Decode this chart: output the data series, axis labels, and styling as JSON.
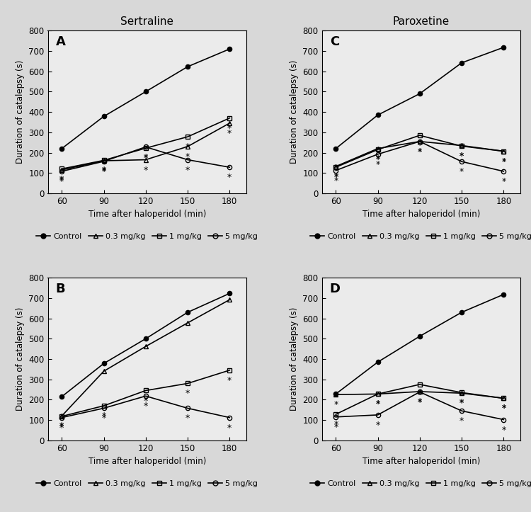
{
  "x": [
    60,
    90,
    120,
    150,
    180
  ],
  "panels": {
    "A": {
      "label": "A",
      "control": [
        220,
        378,
        500,
        623,
        710
      ],
      "dose_03": [
        115,
        160,
        165,
        230,
        345
      ],
      "dose_1": [
        120,
        162,
        222,
        278,
        370
      ],
      "dose_5": [
        108,
        157,
        228,
        165,
        128
      ],
      "stars_03": [
        true,
        true,
        true,
        true,
        true
      ],
      "stars_1": [
        true,
        true,
        true,
        true,
        true
      ],
      "stars_5": [
        true,
        true,
        true,
        true,
        true
      ]
    },
    "B": {
      "label": "B",
      "control": [
        215,
        378,
        500,
        630,
        723
      ],
      "dose_03": [
        120,
        340,
        462,
        578,
        692
      ],
      "dose_1": [
        118,
        170,
        245,
        280,
        345
      ],
      "dose_5": [
        112,
        158,
        218,
        158,
        112
      ],
      "stars_03": [
        true,
        false,
        false,
        false,
        false
      ],
      "stars_1": [
        true,
        true,
        true,
        true,
        true
      ],
      "stars_5": [
        true,
        true,
        true,
        true,
        true
      ]
    },
    "C": {
      "label": "C",
      "control": [
        220,
        385,
        490,
        642,
        718
      ],
      "dose_03": [
        132,
        220,
        255,
        235,
        207
      ],
      "dose_1": [
        128,
        215,
        285,
        232,
        207
      ],
      "dose_5": [
        112,
        192,
        255,
        156,
        108
      ],
      "stars_03": [
        true,
        true,
        true,
        true,
        true
      ],
      "stars_1": [
        true,
        true,
        true,
        true,
        true
      ],
      "stars_5": [
        true,
        true,
        true,
        true,
        true
      ]
    },
    "D": {
      "label": "D",
      "control": [
        228,
        385,
        512,
        630,
        718
      ],
      "dose_03": [
        225,
        228,
        240,
        232,
        207
      ],
      "dose_1": [
        128,
        228,
        275,
        235,
        207
      ],
      "dose_5": [
        115,
        125,
        238,
        145,
        102
      ],
      "stars_03": [
        true,
        true,
        true,
        true,
        true
      ],
      "stars_1": [
        true,
        true,
        true,
        true,
        true
      ],
      "stars_5": [
        true,
        true,
        true,
        true,
        true
      ]
    }
  },
  "xlabel": "Time after haloperidol (min)",
  "ylabel": "Duration of catalepsy (s)",
  "ylim": [
    0,
    800
  ],
  "yticks": [
    0,
    100,
    200,
    300,
    400,
    500,
    600,
    700,
    800
  ],
  "col_titles": [
    "Sertraline",
    "Paroxetine"
  ],
  "bg_color": "#d8d8d8",
  "plot_bg_color": "#ebebeb",
  "legend_entries": [
    "Control",
    "0.3 mg/kg",
    "1 mg/kg",
    "5 mg/kg"
  ]
}
